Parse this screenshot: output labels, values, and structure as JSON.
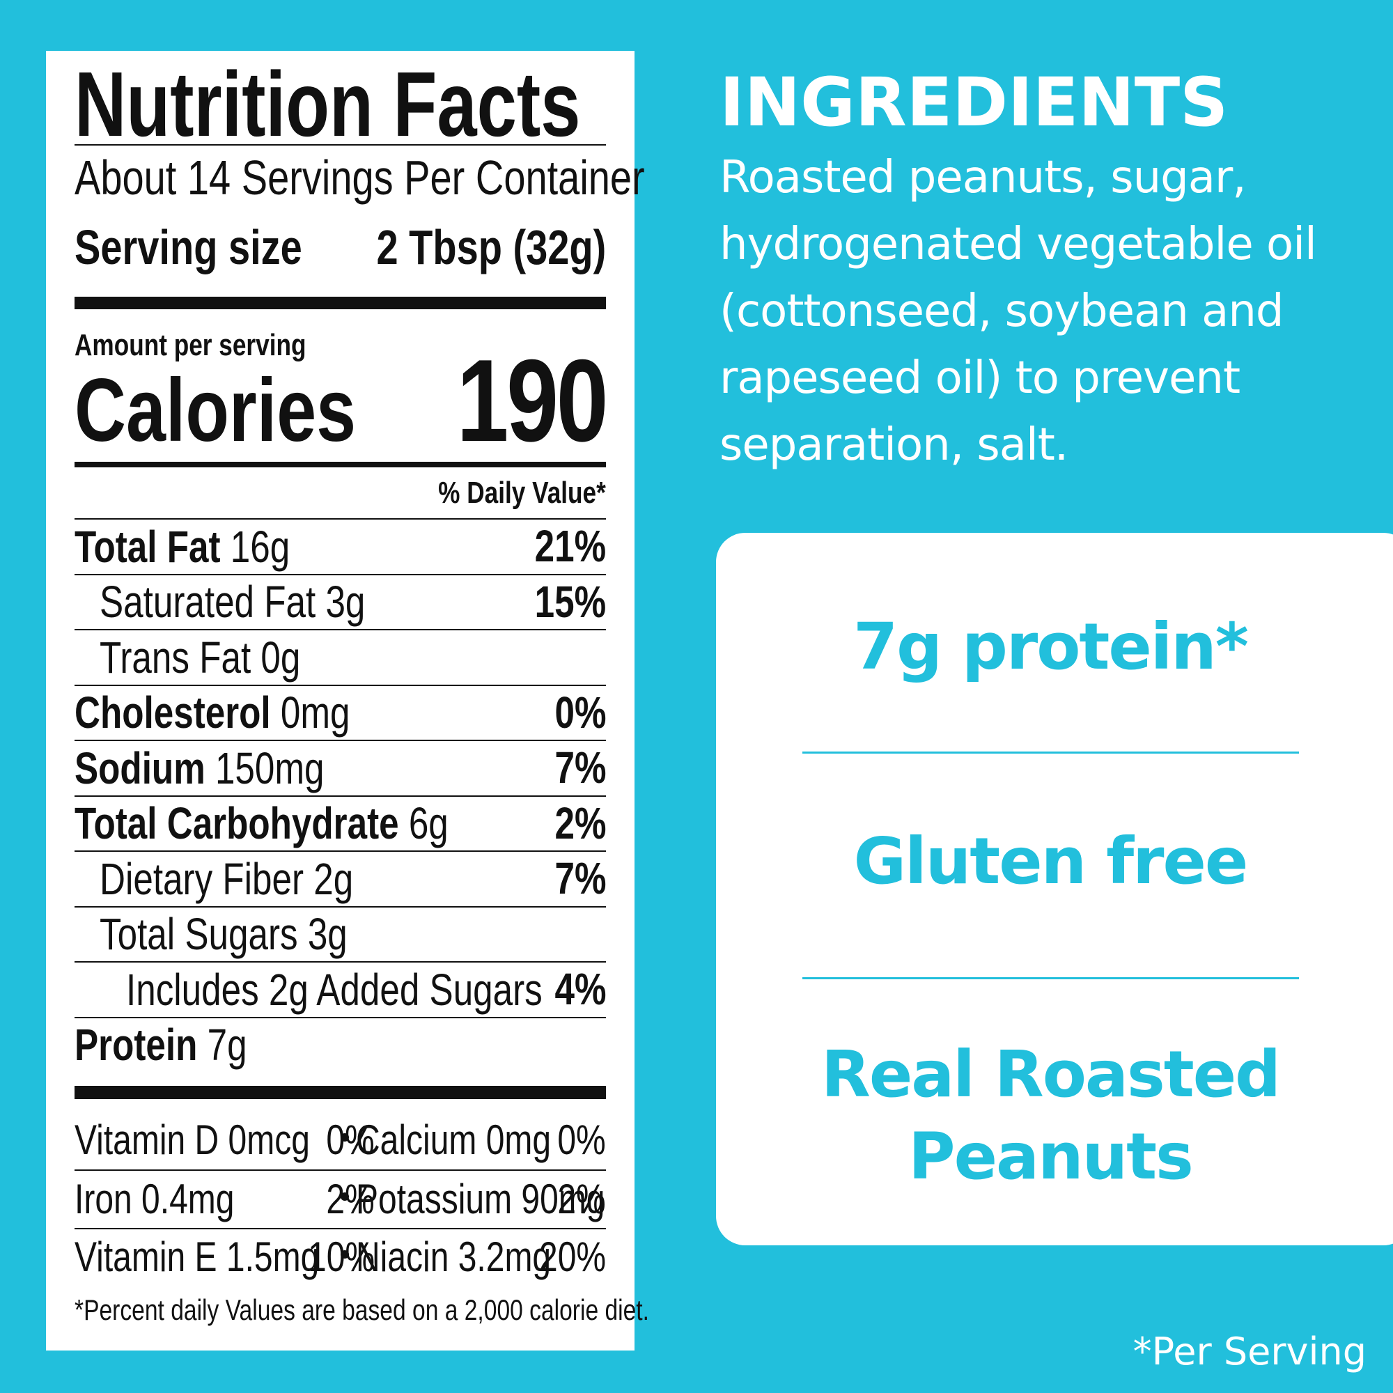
{
  "nutrition_facts": {
    "title": "Nutrition Facts",
    "servings": "About 14 Servings Per Container",
    "serving_size_label": "Serving size",
    "serving_size": "2 Tbsp (32g)",
    "amount_per_serving": "Amount per serving",
    "calories_label": "Calories",
    "calories": 190,
    "daily_value_header": "% Daily Value*",
    "rows": [
      {
        "name": "Total Fat",
        "amount": "16g",
        "dv": "21%",
        "sub": [
          {
            "name": "Saturated Fat",
            "amount": "3g",
            "dv": "15%"
          },
          {
            "name": "Trans Fat",
            "amount": "0g"
          }
        ]
      },
      {
        "name": "Cholesterol",
        "amount": "0mg",
        "dv": "0%"
      },
      {
        "name": "Sodium",
        "amount": "150mg",
        "dv": "7%"
      },
      {
        "name": "Total Carbohydrate",
        "amount": "6g",
        "dv": "2%",
        "sub": [
          {
            "name": "Dietary Fiber",
            "amount": "2g",
            "dv": "7%"
          },
          {
            "name": "Total Sugars",
            "amount": "3g",
            "sub": [
              {
                "name": "Includes 2g Added Sugars",
                "dv": "4%"
              }
            ]
          }
        ]
      },
      {
        "name": "Protein",
        "amount": "7g"
      }
    ],
    "vitamins": [
      [
        {
          "name": "Vitamin D 0mcg",
          "dv": "0%"
        },
        {
          "name": "Calcium 0mg",
          "dv": "0%"
        }
      ],
      [
        {
          "name": "Iron 0.4mg",
          "dv": "2%"
        },
        {
          "name": "Potassium 90mg",
          "dv": "2%"
        }
      ],
      [
        {
          "name": "Vitamin E 1.5mg",
          "dv": "10%"
        },
        {
          "name": "Niacin 3.2mg",
          "dv": "20%"
        }
      ]
    ],
    "footnote": "*Percent daily Values are based on a 2,000 calorie diet."
  },
  "ingredients": {
    "title": "INGREDIENTS",
    "lines": [
      "Roasted peanuts, sugar,",
      "hydrogenated vegetable oil",
      "(cottonseed, soybean and",
      "rapeseed oil) to prevent",
      "separation, salt."
    ]
  },
  "highlights": [
    [
      "7g protein*"
    ],
    [
      "Gluten free"
    ],
    [
      "Real Roasted",
      "Peanuts"
    ]
  ],
  "footnote": "*Per Serving"
}
